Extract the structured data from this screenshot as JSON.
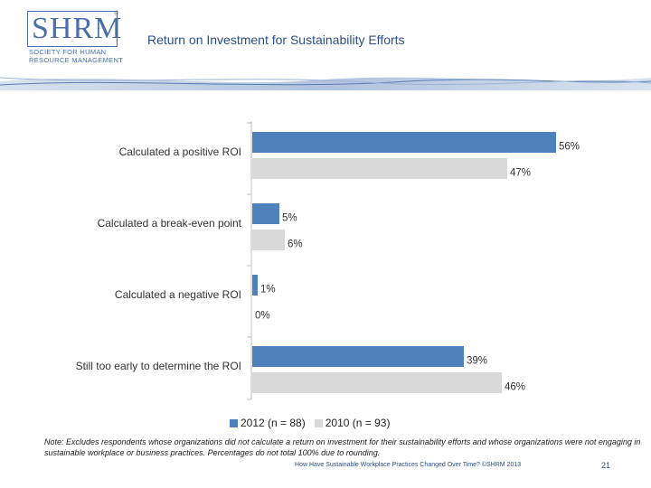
{
  "header": {
    "logo_text": "SHRM",
    "logo_reg": "®",
    "logo_sub": [
      "SOCIETY FOR HUMAN",
      "RESOURCE MANAGEMENT"
    ],
    "title": "Return on Investment for Sustainability Efforts"
  },
  "colors": {
    "series_2012": "#4f81bd",
    "series_2010": "#d9d9d9",
    "header_text": "#2b4f86"
  },
  "chart_data": {
    "type": "bar",
    "orientation": "horizontal",
    "categories": [
      "Calculated a positive ROI",
      "Calculated a break-even point",
      "Calculated a negative ROI",
      "Still too early to determine the ROI"
    ],
    "series": [
      {
        "name": "2012 (n = 88)",
        "values": [
          56,
          5,
          1,
          39
        ],
        "labels": [
          "56%",
          "5%",
          "1%",
          "39%"
        ]
      },
      {
        "name": "2010 (n = 93)",
        "values": [
          47,
          6,
          0,
          46
        ],
        "labels": [
          "47%",
          "6%",
          "0%",
          "46%"
        ]
      }
    ],
    "unit": "%",
    "xlim": [
      0,
      60
    ],
    "grid": false,
    "legend_position": "bottom"
  },
  "footer": {
    "note": "Note: Excludes respondents whose organizations did not calculate a return on investment for their sustainability efforts and whose organizations were not engaging in sustainable workplace or business practices. Percentages do not total 100% due to rounding.",
    "source": "How Have Sustainable Workplace Practices Changed Over Time? ©SHRM 2013",
    "page_number": "21"
  }
}
